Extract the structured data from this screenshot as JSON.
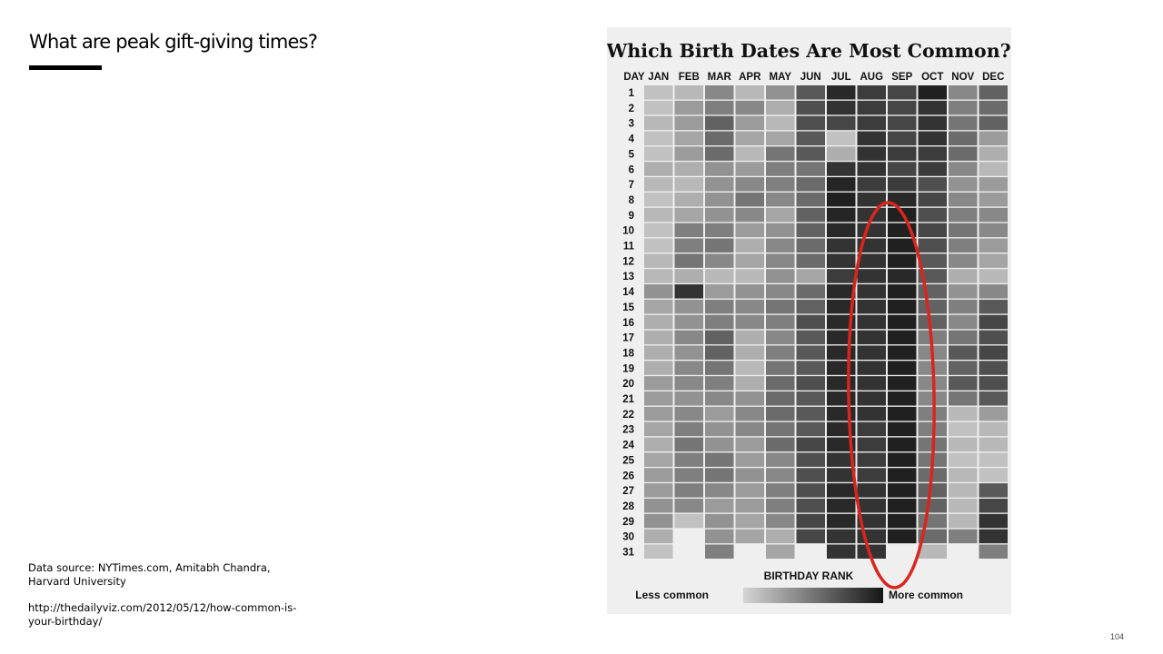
{
  "slide": {
    "title": "What are peak gift-giving times?",
    "source_text": "Data source: NYTimes.com, Amitabh Chandra, Harvard University",
    "url_text": "http://thedailyviz.com/2012/05/12/how-common-is-your-birthday/",
    "page_number": "104"
  },
  "colors": {
    "less_common": "#d4d4d4",
    "more_common": "#161616",
    "annotation": "#d8261f",
    "panel_background": "#efefef"
  },
  "chart_data": {
    "type": "heatmap",
    "title": "Which Birth Dates Are Most Common?",
    "row_header": "DAY",
    "columns": [
      "JAN",
      "FEB",
      "MAR",
      "APR",
      "MAY",
      "JUN",
      "JUL",
      "AUG",
      "SEP",
      "OCT",
      "NOV",
      "DEC"
    ],
    "rows": [
      "1",
      "2",
      "3",
      "4",
      "5",
      "6",
      "7",
      "8",
      "9",
      "10",
      "11",
      "12",
      "13",
      "14",
      "15",
      "16",
      "17",
      "18",
      "19",
      "20",
      "21",
      "22",
      "23",
      "24",
      "25",
      "26",
      "27",
      "28",
      "29",
      "30",
      "31"
    ],
    "value_meaning": "darkness from 0 (less common) to 1 (more common), estimated from cell shading; null = no such date",
    "values": [
      [
        0.1,
        0.15,
        0.4,
        0.15,
        0.35,
        0.65,
        0.9,
        0.8,
        0.75,
        0.95,
        0.4,
        0.6
      ],
      [
        0.1,
        0.3,
        0.45,
        0.4,
        0.2,
        0.7,
        0.85,
        0.8,
        0.75,
        0.85,
        0.45,
        0.55
      ],
      [
        0.15,
        0.3,
        0.6,
        0.3,
        0.15,
        0.7,
        0.75,
        0.8,
        0.75,
        0.85,
        0.5,
        0.6
      ],
      [
        0.1,
        0.25,
        0.55,
        0.25,
        0.25,
        0.65,
        0.1,
        0.85,
        0.75,
        0.85,
        0.55,
        0.3
      ],
      [
        0.1,
        0.3,
        0.55,
        0.15,
        0.5,
        0.65,
        0.2,
        0.85,
        0.8,
        0.8,
        0.55,
        0.2
      ],
      [
        0.2,
        0.2,
        0.35,
        0.3,
        0.45,
        0.5,
        0.85,
        0.85,
        0.75,
        0.8,
        0.4,
        0.15
      ],
      [
        0.15,
        0.15,
        0.35,
        0.4,
        0.45,
        0.55,
        0.92,
        0.8,
        0.8,
        0.7,
        0.35,
        0.3
      ],
      [
        0.1,
        0.2,
        0.35,
        0.5,
        0.4,
        0.55,
        0.95,
        0.85,
        0.9,
        0.75,
        0.4,
        0.3
      ],
      [
        0.15,
        0.25,
        0.35,
        0.4,
        0.25,
        0.6,
        0.92,
        0.85,
        0.95,
        0.7,
        0.45,
        0.4
      ],
      [
        0.1,
        0.45,
        0.45,
        0.3,
        0.35,
        0.6,
        0.9,
        0.85,
        0.95,
        0.75,
        0.5,
        0.4
      ],
      [
        0.1,
        0.45,
        0.5,
        0.2,
        0.4,
        0.55,
        0.85,
        0.85,
        0.95,
        0.7,
        0.45,
        0.3
      ],
      [
        0.15,
        0.5,
        0.4,
        0.25,
        0.4,
        0.55,
        0.85,
        0.85,
        0.95,
        0.65,
        0.4,
        0.25
      ],
      [
        0.15,
        0.2,
        0.15,
        0.15,
        0.35,
        0.25,
        0.8,
        0.85,
        0.9,
        0.65,
        0.2,
        0.15
      ],
      [
        0.35,
        0.85,
        0.3,
        0.35,
        0.4,
        0.55,
        0.9,
        0.85,
        0.95,
        0.6,
        0.35,
        0.4
      ],
      [
        0.25,
        0.35,
        0.45,
        0.4,
        0.5,
        0.6,
        0.9,
        0.85,
        0.95,
        0.6,
        0.45,
        0.65
      ],
      [
        0.2,
        0.35,
        0.45,
        0.4,
        0.45,
        0.7,
        0.9,
        0.85,
        0.95,
        0.6,
        0.4,
        0.75
      ],
      [
        0.2,
        0.4,
        0.6,
        0.2,
        0.4,
        0.65,
        0.9,
        0.85,
        0.95,
        0.45,
        0.5,
        0.7
      ],
      [
        0.2,
        0.35,
        0.6,
        0.2,
        0.45,
        0.65,
        0.9,
        0.85,
        0.95,
        0.4,
        0.65,
        0.75
      ],
      [
        0.2,
        0.4,
        0.5,
        0.15,
        0.5,
        0.65,
        0.9,
        0.85,
        0.95,
        0.4,
        0.6,
        0.7
      ],
      [
        0.3,
        0.4,
        0.45,
        0.2,
        0.55,
        0.7,
        0.9,
        0.85,
        0.95,
        0.4,
        0.65,
        0.7
      ],
      [
        0.3,
        0.35,
        0.4,
        0.35,
        0.55,
        0.65,
        0.9,
        0.85,
        0.95,
        0.4,
        0.5,
        0.65
      ],
      [
        0.3,
        0.4,
        0.3,
        0.4,
        0.55,
        0.65,
        0.9,
        0.85,
        0.95,
        0.45,
        0.15,
        0.3
      ],
      [
        0.25,
        0.45,
        0.35,
        0.4,
        0.5,
        0.65,
        0.9,
        0.8,
        0.95,
        0.45,
        0.1,
        0.15
      ],
      [
        0.2,
        0.5,
        0.35,
        0.3,
        0.55,
        0.75,
        0.9,
        0.8,
        0.95,
        0.5,
        0.15,
        0.15
      ],
      [
        0.25,
        0.45,
        0.5,
        0.3,
        0.4,
        0.7,
        0.85,
        0.8,
        0.95,
        0.5,
        0.1,
        0.1
      ],
      [
        0.3,
        0.45,
        0.5,
        0.35,
        0.4,
        0.7,
        0.85,
        0.8,
        0.95,
        0.55,
        0.15,
        0.1
      ],
      [
        0.3,
        0.45,
        0.4,
        0.3,
        0.45,
        0.7,
        0.9,
        0.85,
        0.95,
        0.6,
        0.15,
        0.65
      ],
      [
        0.35,
        0.4,
        0.3,
        0.3,
        0.45,
        0.7,
        0.9,
        0.85,
        0.95,
        0.6,
        0.15,
        0.75
      ],
      [
        0.35,
        0.1,
        0.35,
        0.25,
        0.4,
        0.75,
        0.9,
        0.85,
        0.95,
        0.5,
        0.15,
        0.85
      ],
      [
        0.2,
        null,
        0.35,
        0.25,
        0.2,
        0.75,
        0.85,
        0.85,
        0.95,
        0.55,
        0.45,
        0.85
      ],
      [
        0.1,
        null,
        0.45,
        null,
        0.25,
        null,
        0.85,
        0.85,
        null,
        0.15,
        null,
        0.45
      ]
    ],
    "legend": {
      "title": "BIRTHDAY RANK",
      "low_label": "Less common",
      "high_label": "More common"
    },
    "annotation": "red ellipse circling the SEP column"
  }
}
